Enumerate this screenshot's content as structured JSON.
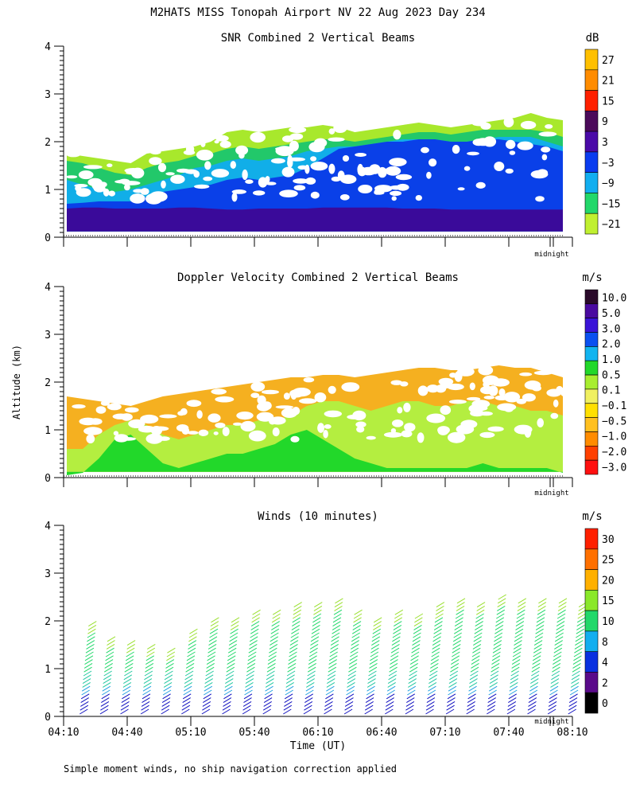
{
  "title": "M2HATS MISS Tonopah Airport NV  22 Aug 2023 Day 234",
  "footnote": "Simple moment winds, no ship navigation correction applied",
  "chart_data": [
    {
      "type": "heatmap",
      "title": "SNR Combined 2 Vertical Beams",
      "ylabel": "",
      "xlabel": "",
      "yticks": [
        "0",
        "1",
        "2",
        "3",
        "4"
      ],
      "ylim": [
        0,
        4
      ],
      "xlim_minutes": [
        250,
        490
      ],
      "marker": "midnight",
      "colorbar": {
        "unit": "dB",
        "labels": [
          "27",
          "21",
          "15",
          "9",
          "3",
          "−3",
          "−9",
          "−15",
          "−21"
        ]
      },
      "layers": [
        {
          "name": "low-signal",
          "color": "#a8e82c",
          "profile": [
            1.75,
            1.7,
            1.65,
            1.6,
            1.55,
            1.75,
            1.8,
            1.85,
            1.9,
            2.0,
            2.2,
            2.25,
            2.2,
            2.25,
            2.3,
            2.3,
            2.35,
            2.3,
            2.2,
            2.25,
            2.3,
            2.35,
            2.4,
            2.35,
            2.3,
            2.35,
            2.4,
            2.45,
            2.5,
            2.6,
            2.5,
            2.45
          ]
        },
        {
          "name": "-15 band",
          "color": "#22c86a",
          "profile": [
            1.6,
            1.55,
            1.45,
            1.35,
            1.3,
            1.45,
            1.55,
            1.6,
            1.7,
            1.75,
            1.85,
            1.9,
            1.85,
            1.9,
            1.95,
            2.0,
            2.05,
            2.05,
            2.0,
            2.05,
            2.1,
            2.15,
            2.2,
            2.2,
            2.15,
            2.2,
            2.25,
            2.25,
            2.25,
            2.25,
            2.2,
            2.1
          ]
        },
        {
          "name": "-9 band",
          "color": "#11aee8",
          "profile": [
            1.2,
            1.1,
            1.0,
            0.95,
            1.0,
            1.1,
            1.2,
            1.3,
            1.45,
            1.5,
            1.6,
            1.65,
            1.6,
            1.65,
            1.7,
            1.8,
            1.85,
            1.9,
            1.9,
            1.95,
            2.0,
            2.05,
            2.05,
            2.05,
            2.0,
            2.0,
            2.05,
            2.1,
            2.1,
            2.1,
            2.0,
            1.9
          ]
        },
        {
          "name": "-3 band",
          "color": "#0a40e8",
          "profile": [
            0.7,
            0.72,
            0.75,
            0.75,
            0.75,
            0.85,
            0.95,
            1.0,
            1.05,
            1.1,
            1.2,
            1.25,
            1.2,
            1.25,
            1.3,
            1.45,
            1.65,
            1.85,
            1.9,
            1.95,
            2.0,
            2.0,
            2.05,
            2.05,
            2.0,
            2.0,
            2.05,
            2.05,
            2.0,
            1.95,
            1.9,
            1.8
          ]
        },
        {
          "name": "3 band",
          "color": "#3a0a9a",
          "profile": [
            0.6,
            0.62,
            0.62,
            0.6,
            0.6,
            0.6,
            0.6,
            0.62,
            0.62,
            0.6,
            0.58,
            0.58,
            0.6,
            0.6,
            0.6,
            0.6,
            0.62,
            0.62,
            0.62,
            0.62,
            0.62,
            0.6,
            0.6,
            0.6,
            0.58,
            0.58,
            0.58,
            0.58,
            0.58,
            0.58,
            0.58,
            0.58
          ]
        }
      ]
    },
    {
      "type": "heatmap",
      "title": "Doppler Velocity Combined 2 Vertical Beams",
      "ylabel": "Altitude (km)",
      "xlabel": "",
      "yticks": [
        "0",
        "1",
        "2",
        "3",
        "4"
      ],
      "ylim": [
        0,
        4
      ],
      "xlim_minutes": [
        250,
        490
      ],
      "marker": "midnight",
      "colorbar": {
        "unit": "m/s",
        "labels": [
          "10.0",
          "5.0",
          "3.0",
          "2.0",
          "1.0",
          "0.5",
          "0.1",
          "−0.1",
          "−0.5",
          "−1.0",
          "−2.0",
          "−3.0"
        ]
      },
      "layers": [
        {
          "name": "-0.5 band",
          "color": "#f5b020",
          "profile": [
            1.7,
            1.65,
            1.6,
            1.55,
            1.5,
            1.6,
            1.7,
            1.75,
            1.8,
            1.85,
            1.9,
            1.95,
            2.0,
            2.05,
            2.1,
            2.1,
            2.15,
            2.15,
            2.1,
            2.15,
            2.2,
            2.25,
            2.3,
            2.3,
            2.25,
            2.25,
            2.3,
            2.35,
            2.3,
            2.3,
            2.2,
            2.1
          ]
        },
        {
          "name": "0.1 band",
          "color": "#b4ee40",
          "profile": [
            0.6,
            0.6,
            0.9,
            1.1,
            1.2,
            1.1,
            0.9,
            0.8,
            0.9,
            1.0,
            1.1,
            1.1,
            1.2,
            1.2,
            1.3,
            1.5,
            1.6,
            1.6,
            1.5,
            1.4,
            1.5,
            1.6,
            1.6,
            1.5,
            1.5,
            1.6,
            1.6,
            1.5,
            1.5,
            1.4,
            1.4,
            1.3
          ]
        },
        {
          "name": "0.5 band",
          "color": "#22d82a",
          "profile": [
            0.05,
            0.1,
            0.4,
            0.8,
            0.9,
            0.6,
            0.3,
            0.2,
            0.3,
            0.4,
            0.5,
            0.5,
            0.6,
            0.7,
            0.9,
            1.0,
            0.8,
            0.6,
            0.4,
            0.3,
            0.2,
            0.2,
            0.2,
            0.2,
            0.2,
            0.2,
            0.3,
            0.2,
            0.2,
            0.2,
            0.2,
            0.1
          ]
        }
      ]
    },
    {
      "type": "barbs",
      "title": "Winds (10 minutes)",
      "xlabel": "Time (UT)",
      "ylabel": "",
      "xticks": [
        "04:10",
        "04:40",
        "05:10",
        "05:40",
        "06:10",
        "06:40",
        "07:10",
        "07:40",
        "08:10"
      ],
      "yticks": [
        "0",
        "1",
        "2",
        "3",
        "4"
      ],
      "ylim": [
        0,
        4
      ],
      "xlim_minutes": [
        250,
        490
      ],
      "marker": "midnight",
      "colorbar": {
        "unit": "m/s",
        "labels": [
          "30",
          "25",
          "20",
          "15",
          "10",
          "8",
          "4",
          "2",
          "0"
        ]
      },
      "profile_tops_km": [
        1.95,
        1.65,
        1.55,
        1.45,
        1.4,
        1.75,
        2.05,
        2.05,
        2.15,
        2.2,
        2.3,
        2.35,
        2.4,
        2.2,
        2.05,
        2.15,
        2.1,
        2.3,
        2.4,
        2.35,
        2.5,
        2.4,
        2.4,
        2.4,
        2.3
      ]
    }
  ]
}
